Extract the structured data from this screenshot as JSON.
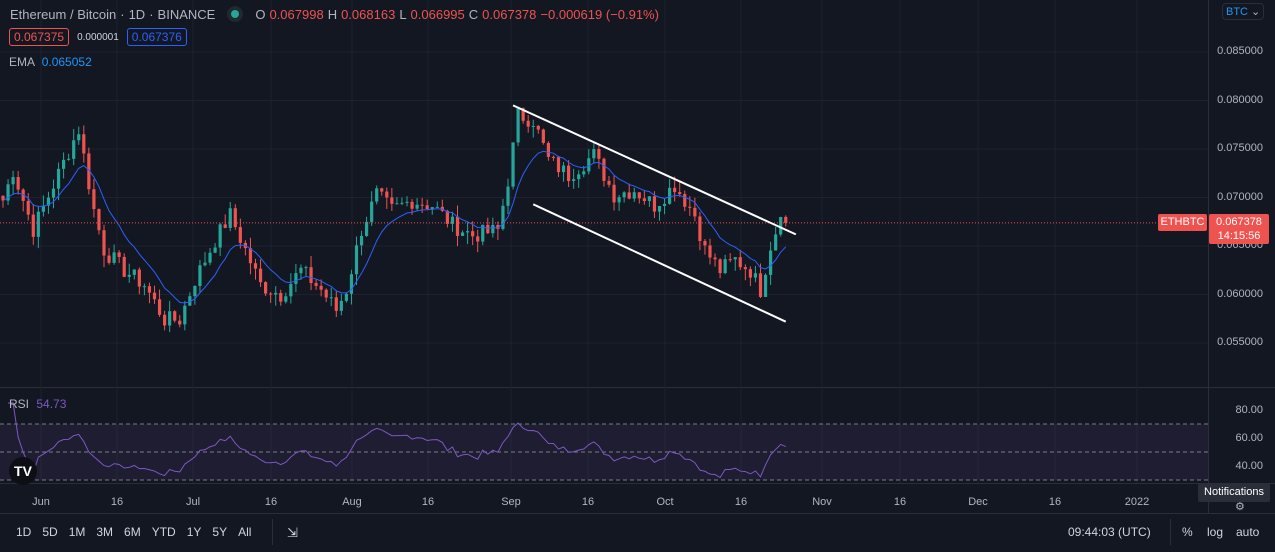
{
  "header": {
    "symbol": "Ethereum / Bitcoin",
    "interval": "1D",
    "exchange": "BINANCE",
    "o_label": "O",
    "o": "0.067998",
    "h_label": "H",
    "h": "0.068163",
    "l_label": "L",
    "l": "0.066995",
    "c_label": "C",
    "c": "0.067378",
    "change": "−0.000619 (−0.91%)",
    "bid": "0.067375",
    "spread": "0.000001",
    "ask": "0.067376"
  },
  "ema": {
    "label": "EMA",
    "value": "0.065052"
  },
  "rsi": {
    "label": "RSI",
    "value": "54.73",
    "ticks": [
      "80.00",
      "60.00",
      "40.00"
    ]
  },
  "price_axis": {
    "currency": "BTC",
    "ticks": [
      "0.085000",
      "0.080000",
      "0.075000",
      "0.070000",
      "0.065000",
      "0.060000",
      "0.055000"
    ],
    "symbol_tag": "ETHBTC",
    "last_price": "0.067378",
    "countdown": "14:15:56"
  },
  "time_axis": [
    "Jun",
    "16",
    "Jul",
    "16",
    "Aug",
    "16",
    "Sep",
    "16",
    "Oct",
    "16",
    "Nov",
    "16",
    "Dec",
    "16",
    "2022"
  ],
  "tooltip": "Notifications",
  "bottom": {
    "ranges": [
      "1D",
      "5D",
      "1M",
      "3M",
      "6M",
      "YTD",
      "1Y",
      "5Y",
      "All"
    ],
    "clock": "09:44:03 (UTC)",
    "percent": "%",
    "log": "log",
    "auto": "auto"
  },
  "colors": {
    "up": "#26a69a",
    "down": "#ef5350",
    "ema": "#2962ff",
    "rsi": "#7e57c2"
  },
  "chart_data": {
    "type": "candlestick",
    "start_date": "May 24",
    "day_keypoints": [
      [
        0,
        0.0697
      ],
      [
        2,
        0.0728
      ],
      [
        6,
        0.0667
      ],
      [
        10,
        0.0713
      ],
      [
        14,
        0.0759
      ],
      [
        15,
        0.077
      ],
      [
        18,
        0.0687
      ],
      [
        20,
        0.0646
      ],
      [
        24,
        0.0625
      ],
      [
        28,
        0.061
      ],
      [
        32,
        0.0574
      ],
      [
        35,
        0.0574
      ],
      [
        38,
        0.0615
      ],
      [
        42,
        0.0656
      ],
      [
        45,
        0.0682
      ],
      [
        48,
        0.0646
      ],
      [
        51,
        0.061
      ],
      [
        55,
        0.06
      ],
      [
        59,
        0.0625
      ],
      [
        63,
        0.0605
      ],
      [
        66,
        0.0584
      ],
      [
        68,
        0.0605
      ],
      [
        71,
        0.0667
      ],
      [
        74,
        0.0703
      ],
      [
        77,
        0.0687
      ],
      [
        81,
        0.0697
      ],
      [
        85,
        0.0692
      ],
      [
        89,
        0.0672
      ],
      [
        93,
        0.0661
      ],
      [
        98,
        0.0666
      ],
      [
        100,
        0.0718
      ],
      [
        102,
        0.0785
      ],
      [
        105,
        0.078
      ],
      [
        108,
        0.0739
      ],
      [
        112,
        0.0723
      ],
      [
        117,
        0.0744
      ],
      [
        121,
        0.0703
      ],
      [
        125,
        0.0708
      ],
      [
        129,
        0.0692
      ],
      [
        133,
        0.0713
      ],
      [
        137,
        0.0682
      ],
      [
        139,
        0.0646
      ],
      [
        142,
        0.0625
      ],
      [
        145,
        0.0636
      ],
      [
        148,
        0.0625
      ],
      [
        150,
        0.0605
      ],
      [
        152,
        0.0651
      ],
      [
        154,
        0.06799
      ],
      [
        155,
        0.067378
      ]
    ],
    "last_candle": {
      "o": 0.067998,
      "h": 0.068163,
      "l": 0.066995,
      "c": 0.067378
    },
    "channel": {
      "upper": [
        [
          101,
          0.0795
        ],
        [
          157,
          0.0662
        ]
      ],
      "lower": [
        [
          105,
          0.0693
        ],
        [
          155,
          0.0572
        ]
      ]
    },
    "ylim": [
      0.0515,
      0.0893
    ]
  }
}
